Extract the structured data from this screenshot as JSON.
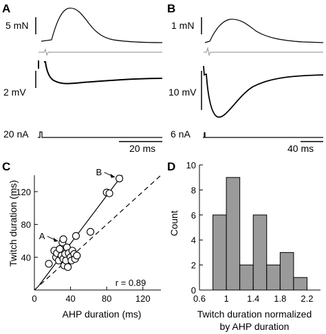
{
  "panels": {
    "A": {
      "label": "A",
      "force_scale": "5 mN",
      "voltage_scale": "2 mV",
      "current_scale": "20 nA",
      "time_scale": "20 ms"
    },
    "B": {
      "label": "B",
      "force_scale": "1 mN",
      "voltage_scale": "10 mV",
      "current_scale": "6 nA",
      "time_scale": "40 ms"
    }
  },
  "chart_data": [
    {
      "panel": "C",
      "type": "scatter",
      "xlabel": "AHP duration (ms)",
      "ylabel": "Twitch duration (ms)",
      "xlim": [
        0,
        140
      ],
      "ylim": [
        0,
        140
      ],
      "xticks": [
        0,
        40,
        80,
        120
      ],
      "yticks": [
        40,
        80,
        120
      ],
      "points": [
        {
          "x": 16,
          "y": 32
        },
        {
          "x": 22,
          "y": 48
        },
        {
          "x": 24,
          "y": 40
        },
        {
          "x": 25,
          "y": 45
        },
        {
          "x": 27,
          "y": 36
        },
        {
          "x": 28,
          "y": 50
        },
        {
          "x": 30,
          "y": 42
        },
        {
          "x": 31,
          "y": 58
        },
        {
          "x": 32,
          "y": 62
        },
        {
          "x": 32,
          "y": 38
        },
        {
          "x": 33,
          "y": 30
        },
        {
          "x": 34,
          "y": 44
        },
        {
          "x": 35,
          "y": 36
        },
        {
          "x": 36,
          "y": 52
        },
        {
          "x": 37,
          "y": 28
        },
        {
          "x": 38,
          "y": 45
        },
        {
          "x": 40,
          "y": 40
        },
        {
          "x": 41,
          "y": 36
        },
        {
          "x": 42,
          "y": 48
        },
        {
          "x": 44,
          "y": 44
        },
        {
          "x": 45,
          "y": 38
        },
        {
          "x": 46,
          "y": 66
        },
        {
          "x": 47,
          "y": 42
        },
        {
          "x": 62,
          "y": 71
        },
        {
          "x": 80,
          "y": 119
        },
        {
          "x": 83,
          "y": 118
        },
        {
          "x": 94,
          "y": 136
        }
      ],
      "regression_line": {
        "x": [
          4,
          97
        ],
        "y": [
          4,
          140
        ]
      },
      "identity_line": {
        "x": [
          0,
          140
        ],
        "y": [
          0,
          140
        ]
      },
      "annotations": [
        {
          "text": "A",
          "target": {
            "x": 31,
            "y": 58
          }
        },
        {
          "text": "B",
          "target": {
            "x": 94,
            "y": 136
          }
        }
      ],
      "stat_text": "r = 0.89",
      "grid": false
    },
    {
      "panel": "D",
      "type": "bar",
      "xlabel_lines": [
        "Twitch duration normalized",
        "by AHP duration"
      ],
      "ylabel": "Count",
      "xlim": [
        0.6,
        2.4
      ],
      "ylim": [
        0,
        10
      ],
      "xticks": [
        0.6,
        1,
        1.4,
        1.8,
        2.2
      ],
      "xtick_labels": [
        "0.6",
        "1",
        "1.4",
        "1.8",
        "2.2"
      ],
      "yticks": [
        0,
        2,
        4,
        6,
        8,
        10
      ],
      "bin_width": 0.2,
      "bins": [
        0.8,
        1.0,
        1.2,
        1.4,
        1.6,
        1.8,
        2.0
      ],
      "values": [
        6,
        9,
        2,
        6,
        2,
        3,
        1
      ],
      "bar_color": "#9a9a9a",
      "grid": false
    }
  ],
  "panel_labels": {
    "C": "C",
    "D": "D"
  }
}
